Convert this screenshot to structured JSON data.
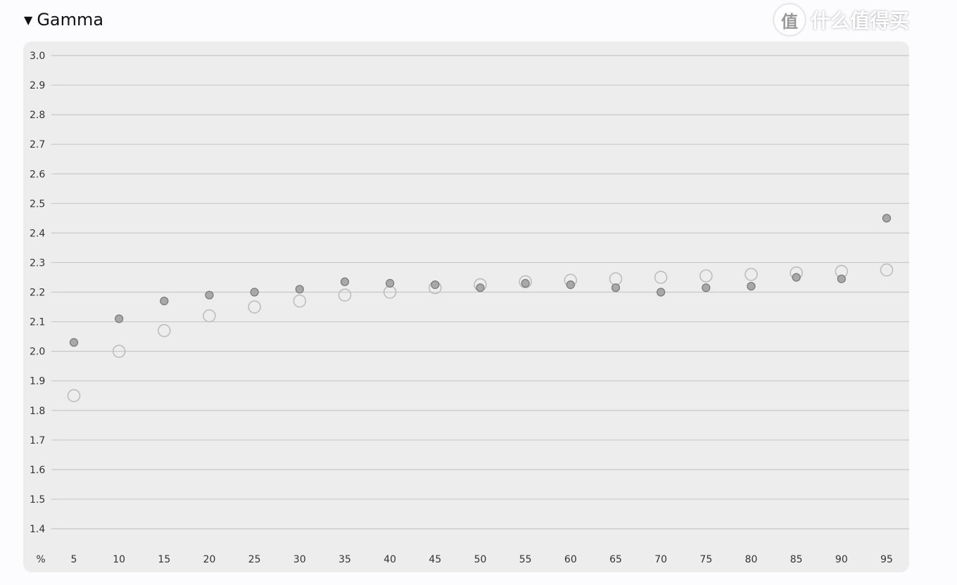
{
  "section": {
    "toggle_icon": "triangle-down-icon",
    "title": "Gamma"
  },
  "watermark": {
    "logo_glyph": "值",
    "text": "什么值得买"
  },
  "chart_data": {
    "type": "scatter",
    "title": "Gamma",
    "xlabel": "%",
    "ylabel": "",
    "x": [
      5,
      10,
      15,
      20,
      25,
      30,
      35,
      40,
      45,
      50,
      55,
      60,
      65,
      70,
      75,
      80,
      85,
      90,
      95
    ],
    "x_tick_labels": [
      "5",
      "10",
      "15",
      "20",
      "25",
      "30",
      "35",
      "40",
      "45",
      "50",
      "55",
      "60",
      "65",
      "70",
      "75",
      "80",
      "85",
      "90",
      "95"
    ],
    "ylim": [
      1.4,
      3.0
    ],
    "y_tick_labels": [
      "3.0",
      "2.9",
      "2.8",
      "2.7",
      "2.6",
      "2.5",
      "2.4",
      "2.3",
      "2.2",
      "2.1",
      "2.0",
      "1.9",
      "1.8",
      "1.7",
      "1.6",
      "1.5",
      "1.4"
    ],
    "grid": true,
    "series": [
      {
        "style": "hollow-circle",
        "color": "#bdbdbd",
        "values": [
          1.85,
          2.0,
          2.07,
          2.12,
          2.15,
          2.17,
          2.19,
          2.2,
          2.215,
          2.225,
          2.235,
          2.24,
          2.245,
          2.25,
          2.255,
          2.26,
          2.265,
          2.27,
          2.275
        ]
      },
      {
        "style": "filled-circle",
        "color": "#a8a8a8",
        "values": [
          2.03,
          2.11,
          2.17,
          2.19,
          2.2,
          2.21,
          2.235,
          2.23,
          2.225,
          2.215,
          2.23,
          2.225,
          2.215,
          2.2,
          2.215,
          2.22,
          2.25,
          2.245,
          2.45
        ]
      }
    ]
  }
}
